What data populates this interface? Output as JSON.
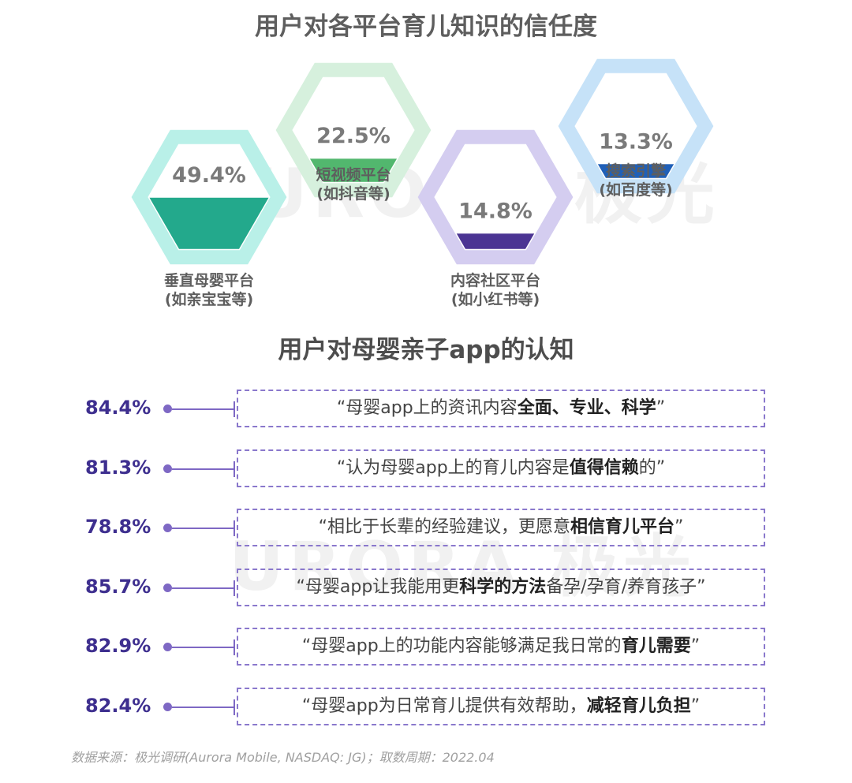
{
  "title1": "用户对各平台育儿知识的信任度",
  "title2": "用户对母婴亲子app的认知",
  "watermark": "URORA 极光",
  "footer": "数据来源：极光调研(Aurora Mobile, NASDAQ: JG)；取数周期：2022.04",
  "chart_data": [
    {
      "type": "bar",
      "title": "用户对各平台育儿知识的信任度",
      "unit": "%",
      "ylim": [
        0,
        100
      ],
      "categories": [
        {
          "label": "垂直母婴平台",
          "sub": "(如亲宝宝等)",
          "value": 49.4,
          "display": "49.4%",
          "color": "#23a98c",
          "light": "#b9f0e8"
        },
        {
          "label": "短视频平台",
          "sub": "(如抖音等)",
          "value": 22.5,
          "display": "22.5%",
          "color": "#52b76e",
          "light": "#d6f0dd"
        },
        {
          "label": "内容社区平台",
          "sub": "(如小红书等)",
          "value": 14.8,
          "display": "14.8%",
          "color": "#4b3493",
          "light": "#d4cdf0"
        },
        {
          "label": "搜索引擎",
          "sub": "(如百度等)",
          "value": 13.3,
          "display": "13.3%",
          "color": "#2060b8",
          "light": "#c6e2f8"
        }
      ]
    },
    {
      "type": "table",
      "title": "用户对母婴亲子app的认知",
      "unit": "%",
      "rows": [
        {
          "value": 84.4,
          "display": "84.4%",
          "pre": "“母婴app上的资讯内容",
          "bold": "全面、专业、科学",
          "post": "”"
        },
        {
          "value": 81.3,
          "display": "81.3%",
          "pre": "“认为母婴app上的育儿内容是",
          "bold": "值得信赖",
          "post": "的”"
        },
        {
          "value": 78.8,
          "display": "78.8%",
          "pre": "“相比于长辈的经验建议，更愿意",
          "bold": "相信育儿平台",
          "post": "”"
        },
        {
          "value": 85.7,
          "display": "85.7%",
          "pre": "“母婴app让我能用更",
          "bold": "科学的方法",
          "post": "备孕/孕育/养育孩子”"
        },
        {
          "value": 82.9,
          "display": "82.9%",
          "pre": "“母婴app上的功能内容能够满足我日常的",
          "bold": "育儿需要",
          "post": "”"
        },
        {
          "value": 82.4,
          "display": "82.4%",
          "pre": "“母婴app为日常育儿提供有效帮助，",
          "bold": "减轻育儿负担",
          "post": "”"
        }
      ]
    }
  ]
}
